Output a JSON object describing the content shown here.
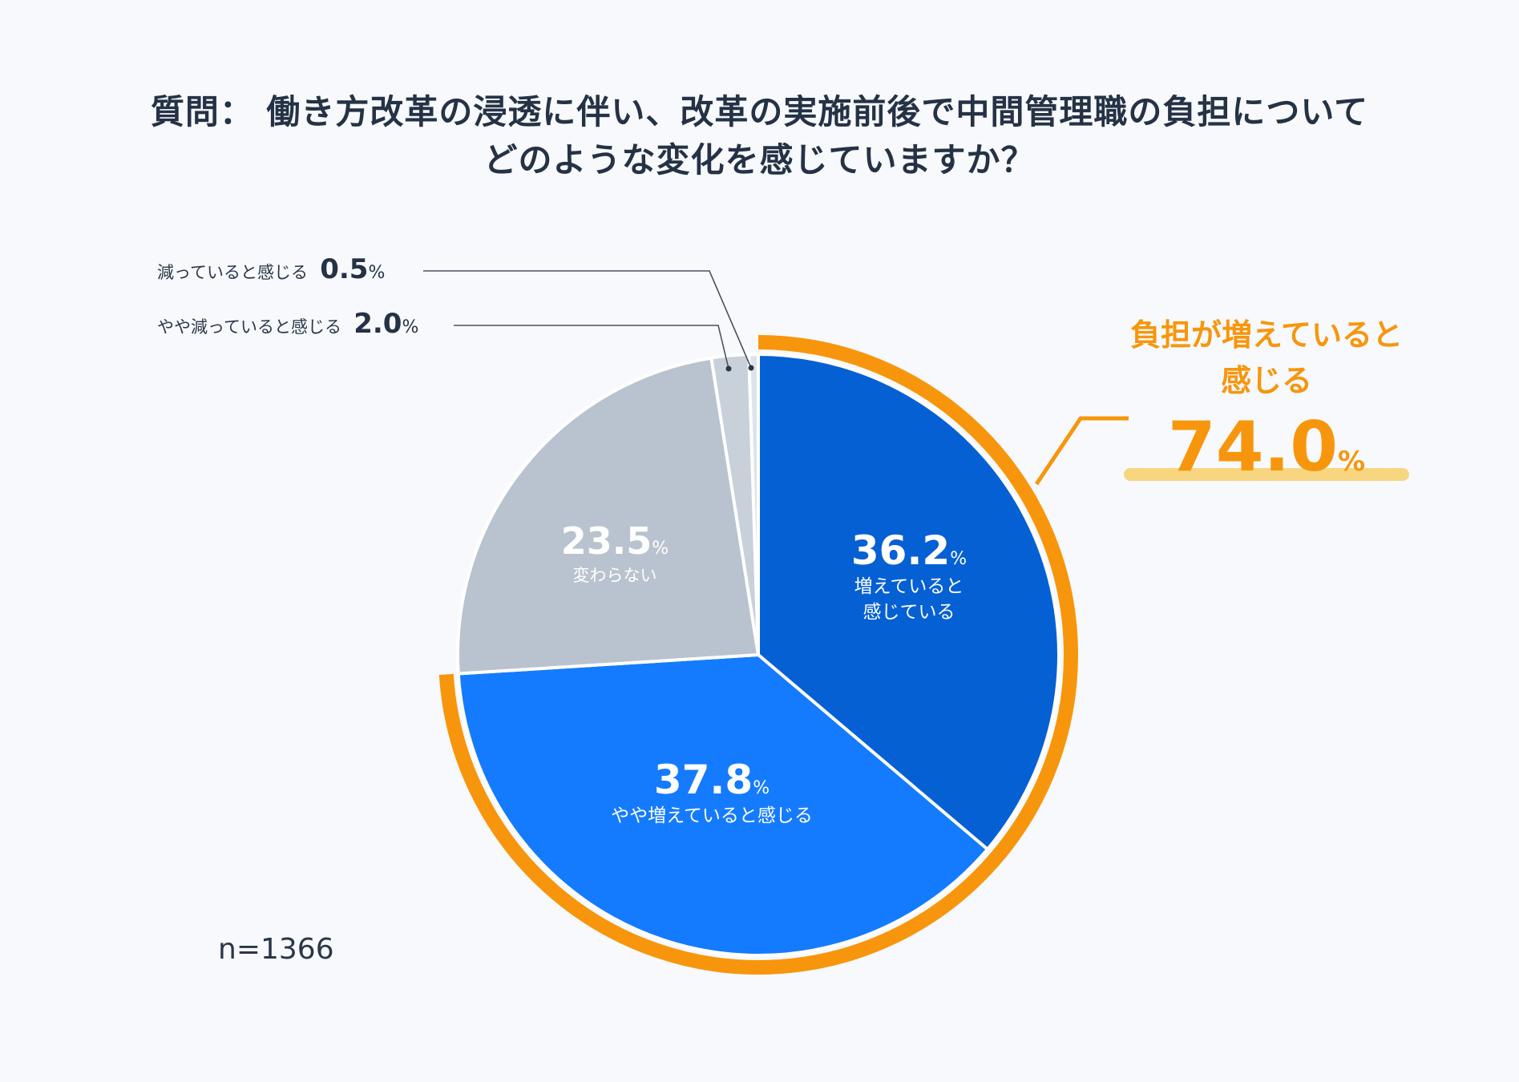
{
  "title": {
    "line1": "質問： 働き方改革の浸透に伴い、改革の実施前後で中間管理職の負担について",
    "line2": "どのような変化を感じていますか？"
  },
  "chart_data": {
    "type": "pie",
    "title": "質問： 働き方改革の浸透に伴い、改革の実施前後で中間管理職の負担についてどのような変化を感じていますか？",
    "start_angle": "12 o'clock, clockwise",
    "slices": [
      {
        "label": "増えていると感じている",
        "line1": "増えていると",
        "line2": "感じている",
        "value": 36.2,
        "value_text": "36.2",
        "color": "#0560d4"
      },
      {
        "label": "やや増えていると感じる",
        "value": 37.8,
        "value_text": "37.8",
        "color": "#147bfe"
      },
      {
        "label": "変わらない",
        "value": 23.5,
        "value_text": "23.5",
        "color": "#b9c3cf"
      },
      {
        "label": "やや減っていると感じる",
        "value": 2.0,
        "value_text": "2.0",
        "color": "#c8d0da"
      },
      {
        "label": "減っていると感じる",
        "value": 0.5,
        "value_text": "0.5",
        "color": "#dde3ea"
      }
    ],
    "unit": "%",
    "highlight": {
      "line1": "負担が増えていると",
      "line2": "感じる",
      "value": 74.0,
      "value_text": "74.0",
      "color": "#f7960c"
    },
    "n_label": "n=1366"
  }
}
